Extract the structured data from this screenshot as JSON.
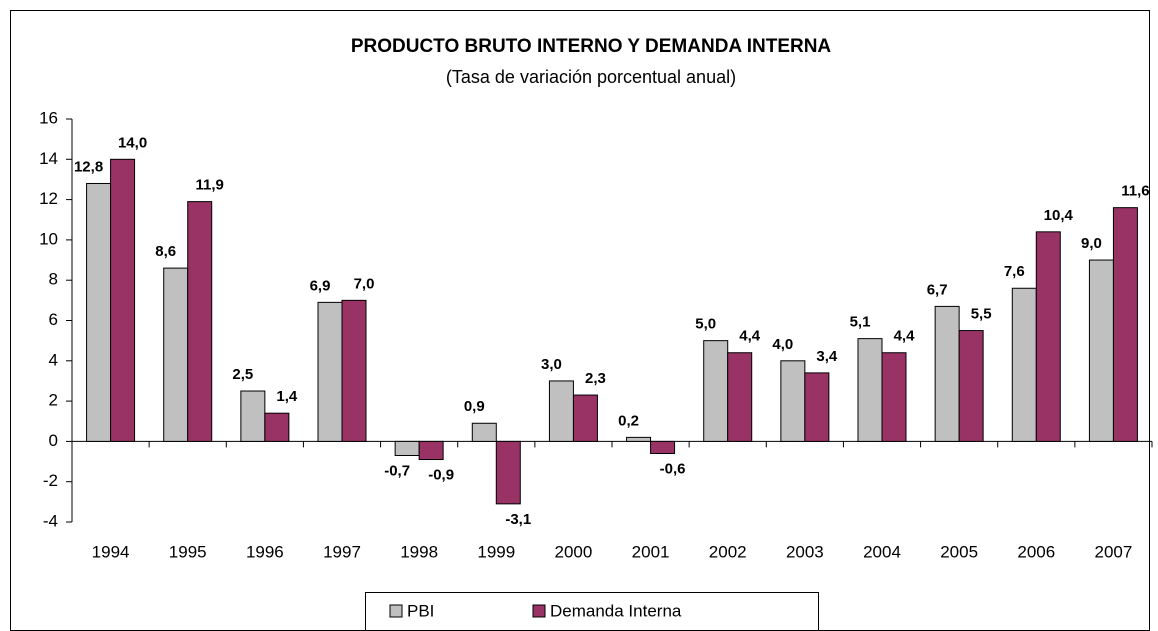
{
  "chart_data": {
    "type": "bar",
    "title": "PRODUCTO BRUTO INTERNO Y DEMANDA INTERNA",
    "subtitle": "(Tasa de variación porcentual anual)",
    "categories": [
      "1994",
      "1995",
      "1996",
      "1997",
      "1998",
      "1999",
      "2000",
      "2001",
      "2002",
      "2003",
      "2004",
      "2005",
      "2006",
      "2007"
    ],
    "series": [
      {
        "name": "PBI",
        "color": "#c0c0c0",
        "values": [
          12.8,
          8.6,
          2.5,
          6.9,
          -0.7,
          0.9,
          3.0,
          0.2,
          5.0,
          4.0,
          5.1,
          6.7,
          7.6,
          9.0
        ],
        "value_labels": [
          "12,8",
          "8,6",
          "2,5",
          "6,9",
          "-0,7",
          "0,9",
          "3,0",
          "0,2",
          "5,0",
          "4,0",
          "5,1",
          "6,7",
          "7,6",
          "9,0"
        ]
      },
      {
        "name": "Demanda Interna",
        "color": "#993366",
        "values": [
          14.0,
          11.9,
          1.4,
          7.0,
          -0.9,
          -3.1,
          2.3,
          -0.6,
          4.4,
          3.4,
          4.4,
          5.5,
          10.4,
          11.6
        ],
        "value_labels": [
          "14,0",
          "11,9",
          "1,4",
          "7,0",
          "-0,9",
          "-3,1",
          "2,3",
          "-0,6",
          "4,4",
          "3,4",
          "4,4",
          "5,5",
          "10,4",
          "11,6"
        ]
      }
    ],
    "ylim": [
      -4,
      16
    ],
    "yticks": [
      -4,
      -2,
      0,
      2,
      4,
      6,
      8,
      10,
      12,
      14,
      16
    ],
    "grid": false,
    "legend": "bottom"
  }
}
